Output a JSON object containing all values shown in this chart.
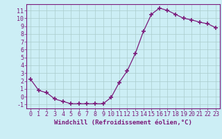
{
  "x": [
    0,
    1,
    2,
    3,
    4,
    5,
    6,
    7,
    8,
    9,
    10,
    11,
    12,
    13,
    14,
    15,
    16,
    17,
    18,
    19,
    20,
    21,
    22,
    23
  ],
  "y": [
    2.2,
    0.8,
    0.5,
    -0.3,
    -0.6,
    -0.9,
    -0.9,
    -0.9,
    -0.9,
    -0.9,
    -0.1,
    1.8,
    3.3,
    5.5,
    8.3,
    10.5,
    11.3,
    11.0,
    10.5,
    10.0,
    9.8,
    9.5,
    9.3,
    8.8
  ],
  "line_color": "#7B1B7B",
  "marker": "+",
  "marker_size": 4,
  "marker_lw": 1.2,
  "bg_color": "#cceef5",
  "grid_color": "#aacccc",
  "xlabel": "Windchill (Refroidissement éolien,°C)",
  "xlim": [
    -0.5,
    23.5
  ],
  "ylim": [
    -1.5,
    11.8
  ],
  "xticks": [
    0,
    1,
    2,
    3,
    4,
    5,
    6,
    7,
    8,
    9,
    10,
    11,
    12,
    13,
    14,
    15,
    16,
    17,
    18,
    19,
    20,
    21,
    22,
    23
  ],
  "yticks": [
    -1,
    0,
    1,
    2,
    3,
    4,
    5,
    6,
    7,
    8,
    9,
    10,
    11
  ],
  "xlabel_fontsize": 6.5,
  "tick_fontsize": 6.0,
  "tick_color": "#7B1B7B",
  "axis_color": "#7B1B7B",
  "line_width": 0.9
}
